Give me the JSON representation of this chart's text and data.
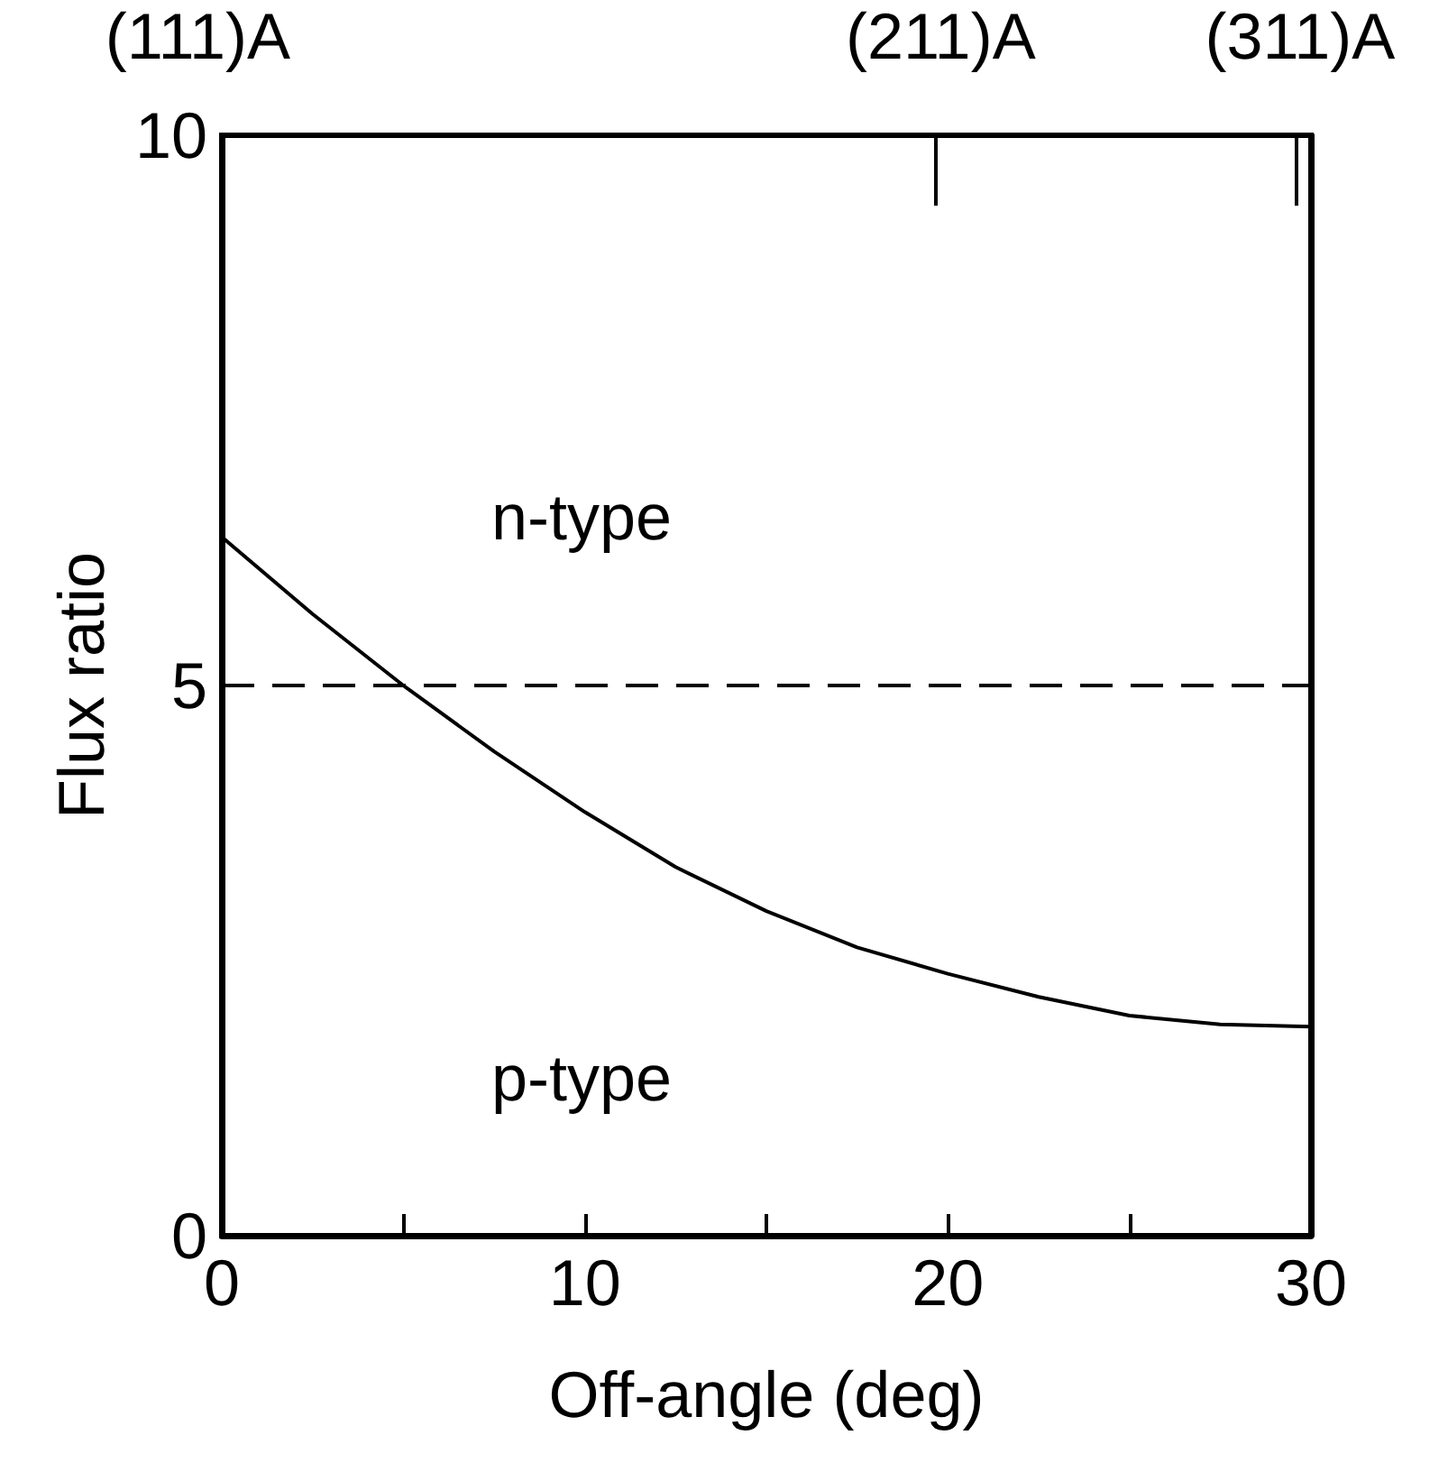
{
  "chart_data": {
    "type": "line",
    "xlabel": "Off-angle (deg)",
    "ylabel": "Flux ratio",
    "x": [
      0,
      2.5,
      5,
      7.5,
      10,
      12.5,
      15,
      17.5,
      20,
      22.5,
      25,
      27.5,
      30
    ],
    "series": [
      {
        "color": "#000000",
        "values": [
          6.35,
          5.65,
          5.0,
          4.4,
          3.85,
          3.35,
          2.95,
          2.62,
          2.38,
          2.17,
          2.0,
          1.92,
          1.9
        ]
      }
    ],
    "xlim": [
      0,
      30
    ],
    "xticks": [
      0,
      {
        "value": 5,
        "label": null
      },
      10,
      {
        "value": 15,
        "label": null
      },
      20,
      {
        "value": 25,
        "label": null
      },
      30
    ],
    "ylim": [
      0,
      10
    ],
    "yticks": [
      0,
      5,
      10
    ],
    "ref_lines": [
      {
        "axis": "y",
        "value": 5,
        "color": "#000000",
        "line_style": "dashed"
      }
    ],
    "annotations": [
      "n-type",
      "p-type",
      "(111)A",
      "(211)A",
      "(311)A"
    ],
    "marker": "none",
    "line_style": "solid",
    "grid": false
  }
}
